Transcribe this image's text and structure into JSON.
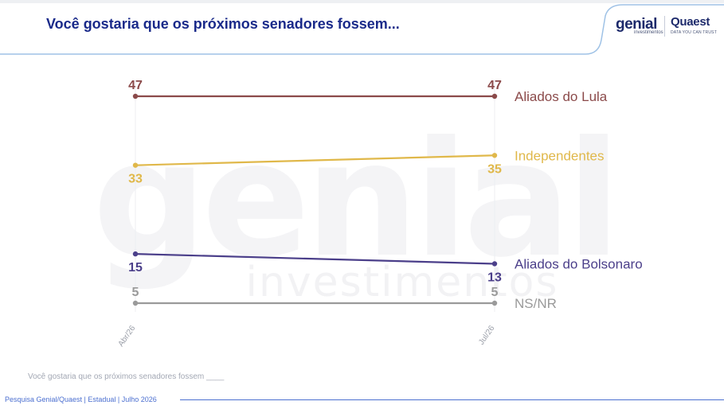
{
  "header": {
    "title": "Você gostaria que os próximos senadores fossem...",
    "logo_genial": "genial",
    "logo_genial_sub": "investimentos",
    "logo_quaest": "Quaest",
    "logo_quaest_sub": "DATA YOU CAN TRUST"
  },
  "watermark": {
    "main": "genial",
    "sub": "investimentos"
  },
  "chart_data": {
    "type": "line",
    "x": [
      "Abr/26",
      "Jul/26"
    ],
    "ylim": [
      0,
      50
    ],
    "grid": false,
    "legend": "right",
    "series": [
      {
        "name": "Aliados do Lula",
        "values": [
          47,
          47
        ],
        "color": "#8b4a4a"
      },
      {
        "name": "Independentes",
        "values": [
          33,
          35
        ],
        "color": "#e0b84a"
      },
      {
        "name": "Aliados do Bolsonaro",
        "values": [
          15,
          13
        ],
        "color": "#4b3f8a"
      },
      {
        "name": "NS/NR",
        "values": [
          5,
          5
        ],
        "color": "#9a9a9a"
      }
    ]
  },
  "question_text": "Você gostaria que os próximos senadores fossem ____",
  "footer": {
    "source": "Pesquisa Genial/Quaest | Estadual | Julho 2026"
  }
}
